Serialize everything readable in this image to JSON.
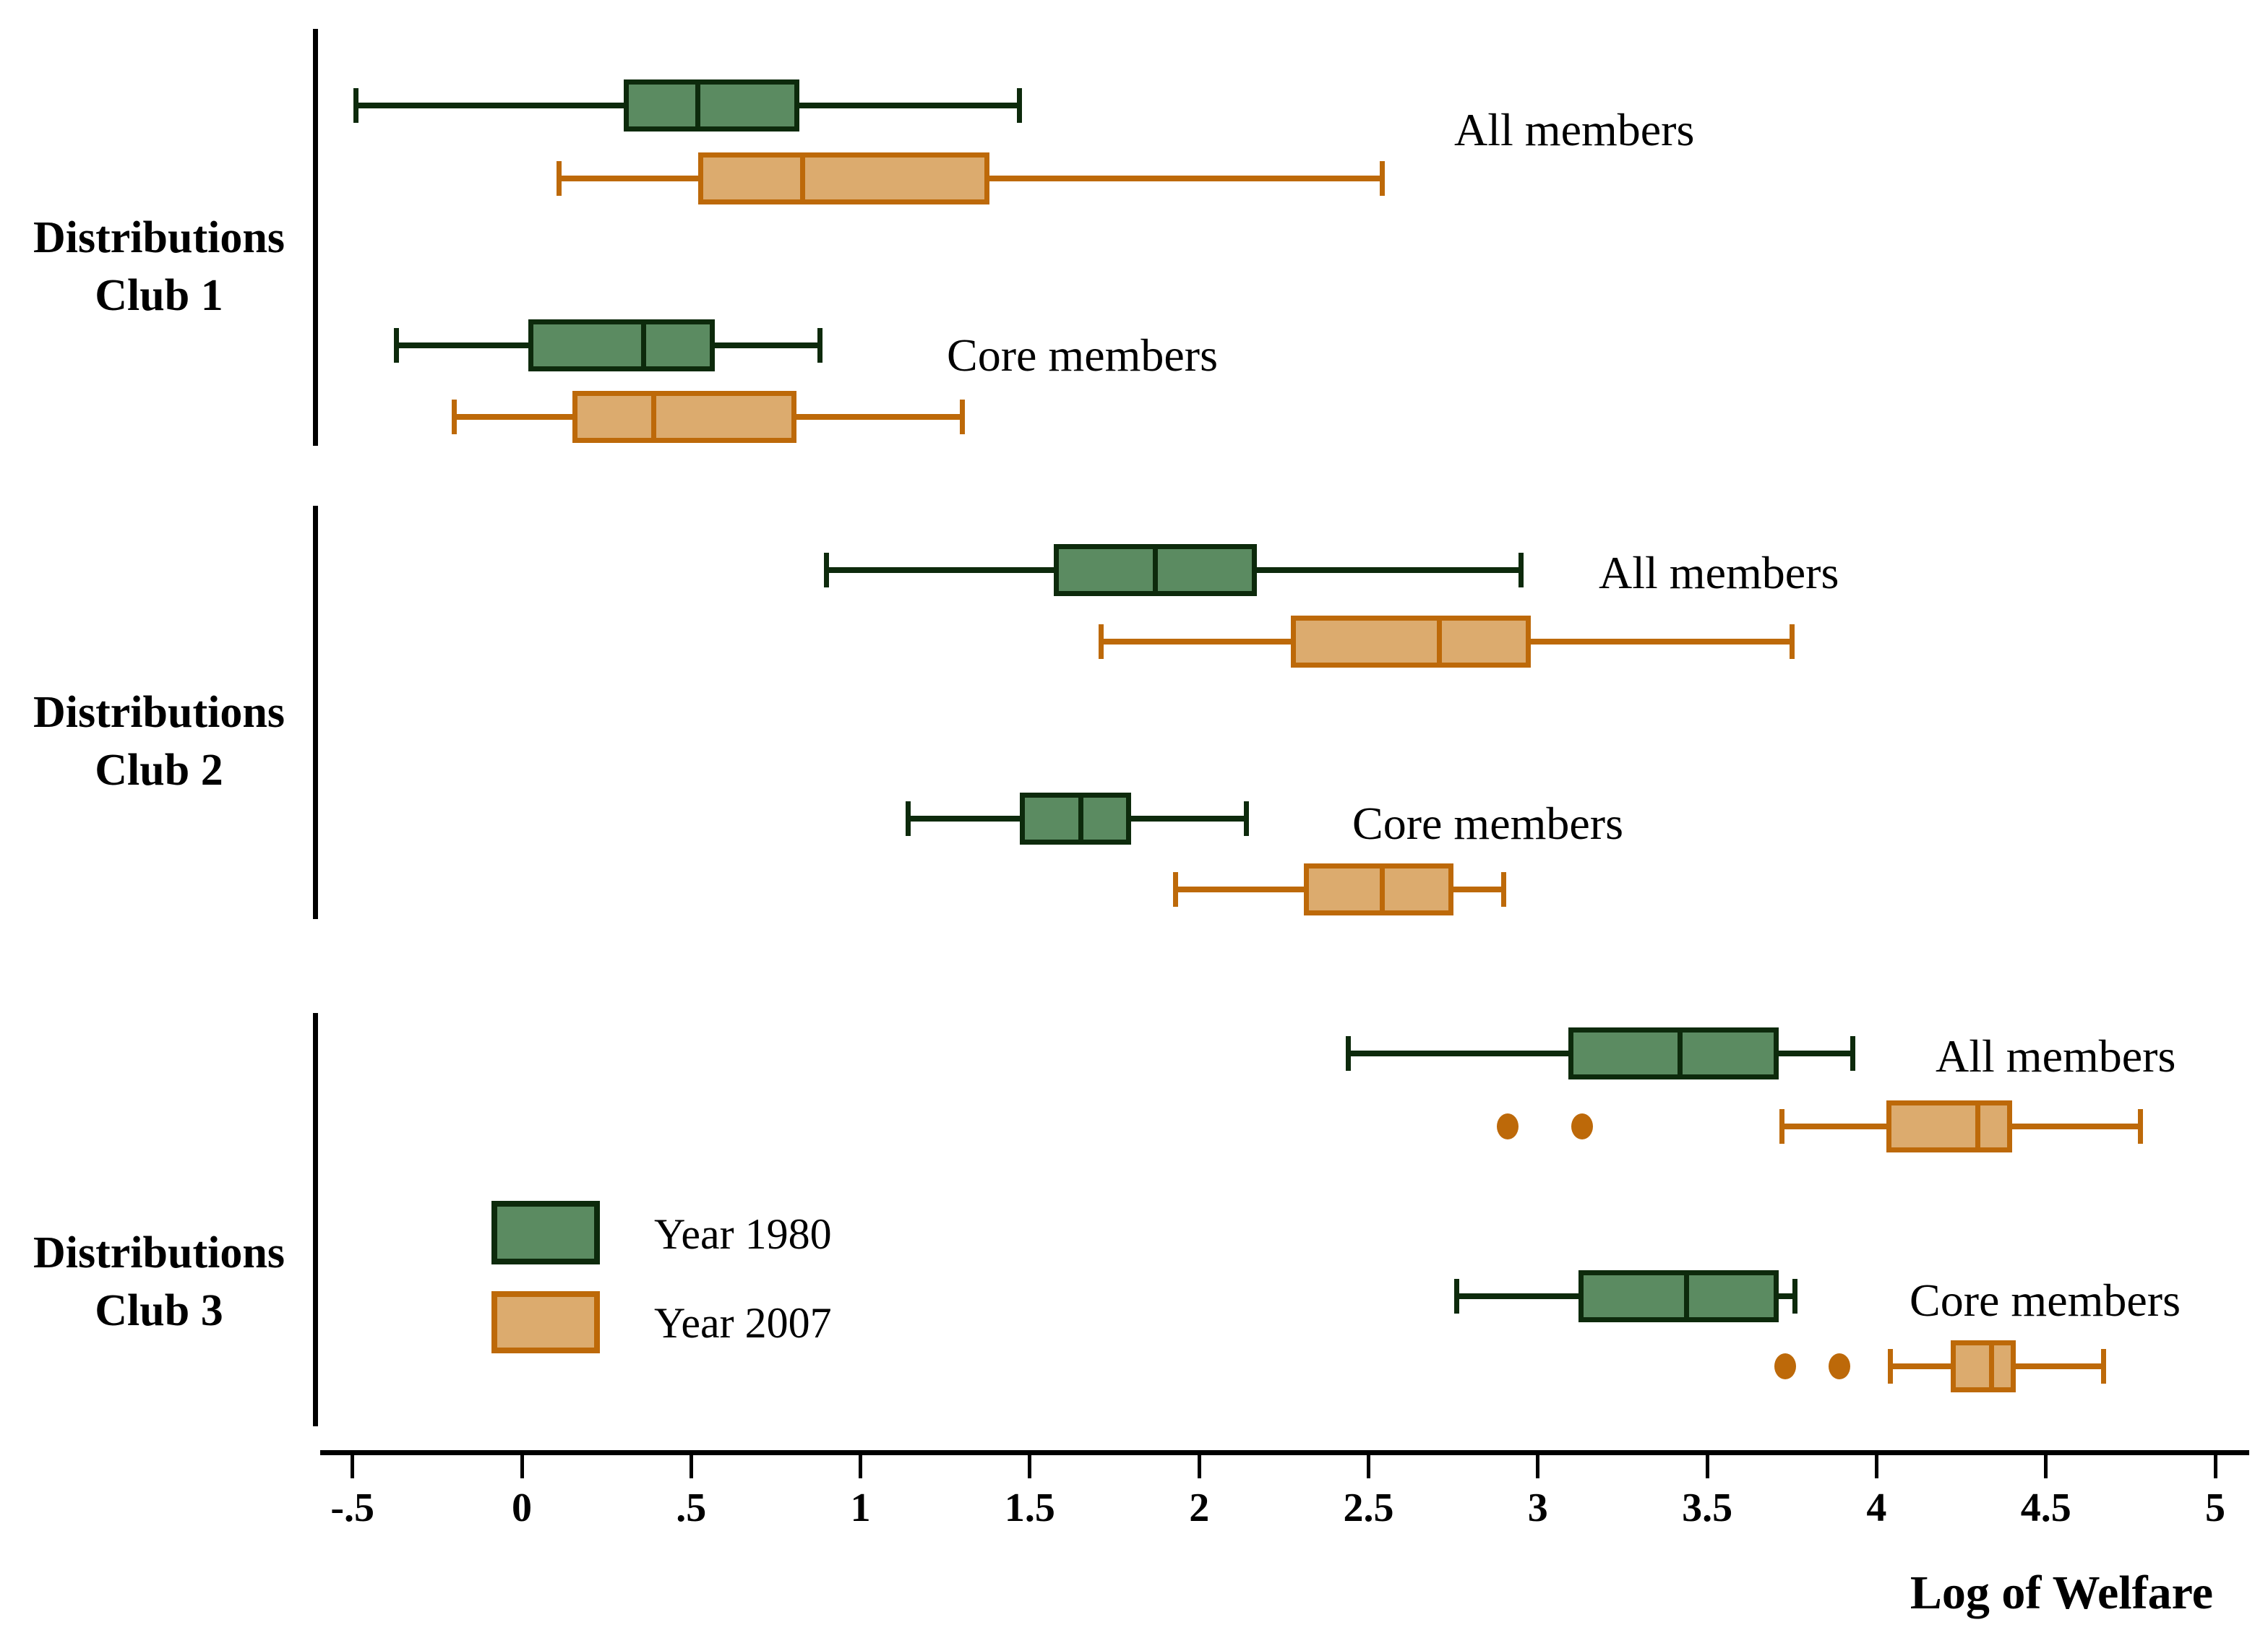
{
  "chart_data": {
    "type": "boxplot",
    "orientation": "horizontal",
    "xlabel": "Log of Welfare",
    "x_ticks": [
      {
        "label": "-.5",
        "value": -0.5
      },
      {
        "label": "0",
        "value": 0
      },
      {
        "label": ".5",
        "value": 0.5
      },
      {
        "label": "1",
        "value": 1
      },
      {
        "label": "1.5",
        "value": 1.5
      },
      {
        "label": "2",
        "value": 2
      },
      {
        "label": "2.5",
        "value": 2.5
      },
      {
        "label": "3",
        "value": 3
      },
      {
        "label": "3.5",
        "value": 3.5
      },
      {
        "label": "4",
        "value": 4
      },
      {
        "label": "4.5",
        "value": 4.5
      },
      {
        "label": "5",
        "value": 5
      }
    ],
    "xlim": [
      -0.72,
      5.16
    ],
    "grid": false,
    "legend_position": "inside-left-middle",
    "legend": [
      {
        "label": "Year 1980",
        "fill": "#5B8B61",
        "border": "#0D2A0C"
      },
      {
        "label": "Year 2007",
        "fill": "#DCAB6E",
        "border": "#BD6909"
      }
    ],
    "groups": [
      {
        "label": [
          "Distributions",
          "Club 1"
        ],
        "subgroups": [
          {
            "label": "All members",
            "boxes": [
              {
                "series": "Year 1980",
                "whisker_low": -0.49,
                "q1": 0.3,
                "median": 0.52,
                "q3": 0.82,
                "whisker_high": 1.47,
                "outliers": []
              },
              {
                "series": "Year 2007",
                "whisker_low": 0.11,
                "q1": 0.52,
                "median": 0.83,
                "q3": 1.38,
                "whisker_high": 2.54,
                "outliers": []
              }
            ]
          },
          {
            "label": "Core members",
            "boxes": [
              {
                "series": "Year 1980",
                "whisker_low": -0.37,
                "q1": 0.02,
                "median": 0.36,
                "q3": 0.57,
                "whisker_high": 0.88,
                "outliers": []
              },
              {
                "series": "Year 2007",
                "whisker_low": -0.2,
                "q1": 0.15,
                "median": 0.39,
                "q3": 0.81,
                "whisker_high": 1.3,
                "outliers": []
              }
            ]
          }
        ]
      },
      {
        "label": [
          "Distributions",
          "Club 2"
        ],
        "subgroups": [
          {
            "label": "All members",
            "boxes": [
              {
                "series": "Year 1980",
                "whisker_low": 0.9,
                "q1": 1.57,
                "median": 1.87,
                "q3": 2.17,
                "whisker_high": 2.95,
                "outliers": []
              },
              {
                "series": "Year 2007",
                "whisker_low": 1.71,
                "q1": 2.27,
                "median": 2.71,
                "q3": 2.98,
                "whisker_high": 3.75,
                "outliers": []
              }
            ]
          },
          {
            "label": "Core members",
            "boxes": [
              {
                "series": "Year 1980",
                "whisker_low": 1.14,
                "q1": 1.47,
                "median": 1.65,
                "q3": 1.8,
                "whisker_high": 2.14,
                "outliers": []
              },
              {
                "series": "Year 2007",
                "whisker_low": 1.93,
                "q1": 2.31,
                "median": 2.54,
                "q3": 2.75,
                "whisker_high": 2.9,
                "outliers": []
              }
            ]
          }
        ]
      },
      {
        "label": [
          "Distributions",
          "Club 3"
        ],
        "subgroups": [
          {
            "label": "All members",
            "boxes": [
              {
                "series": "Year 1980",
                "whisker_low": 2.44,
                "q1": 3.09,
                "median": 3.42,
                "q3": 3.71,
                "whisker_high": 3.93,
                "outliers": []
              },
              {
                "series": "Year 2007",
                "whisker_low": 3.72,
                "q1": 4.03,
                "median": 4.3,
                "q3": 4.4,
                "whisker_high": 4.78,
                "outliers": [
                  2.91,
                  3.13
                ]
              }
            ]
          },
          {
            "label": "Core members",
            "boxes": [
              {
                "series": "Year 1980",
                "whisker_low": 2.76,
                "q1": 3.12,
                "median": 3.44,
                "q3": 3.71,
                "whisker_high": 3.76,
                "outliers": []
              },
              {
                "series": "Year 2007",
                "whisker_low": 4.04,
                "q1": 4.22,
                "median": 4.34,
                "q3": 4.41,
                "whisker_high": 4.67,
                "outliers": [
                  3.73,
                  3.89
                ]
              }
            ]
          }
        ]
      }
    ]
  },
  "colors": {
    "series_1980_fill": "#5B8B61",
    "series_1980_border": "#0D2A0C",
    "series_2007_fill": "#DCAB6E",
    "series_2007_border": "#BD6909",
    "outlier": "#BD6909",
    "axis": "#000000",
    "text": "#000000",
    "background": "#FFFFFF"
  }
}
